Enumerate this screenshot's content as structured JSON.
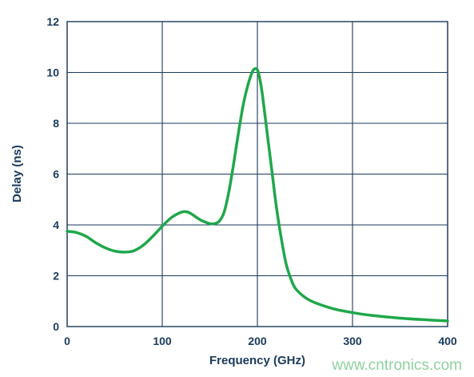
{
  "chart_data": {
    "type": "line",
    "title": "",
    "xlabel": "Frequency (GHz)",
    "ylabel": "Delay (ns)",
    "xlim": [
      0,
      400
    ],
    "ylim": [
      0,
      12
    ],
    "x_ticks": [
      "0",
      "100",
      "200",
      "300",
      "400"
    ],
    "y_ticks": [
      "0",
      "2",
      "4",
      "6",
      "8",
      "10",
      "12"
    ],
    "grid": true,
    "legend": "none",
    "series": [
      {
        "color": "#1fa74a",
        "x": [
          0,
          10,
          20,
          30,
          40,
          50,
          60,
          70,
          80,
          90,
          100,
          110,
          120,
          125,
          130,
          140,
          150,
          155,
          160,
          165,
          170,
          175,
          180,
          185,
          190,
          195,
          198,
          200,
          202,
          205,
          210,
          215,
          220,
          225,
          230,
          235,
          240,
          250,
          260,
          280,
          300,
          320,
          350,
          380,
          400
        ],
        "y": [
          3.75,
          3.7,
          3.55,
          3.3,
          3.1,
          2.97,
          2.93,
          2.98,
          3.2,
          3.55,
          3.95,
          4.3,
          4.5,
          4.52,
          4.45,
          4.2,
          4.05,
          4.05,
          4.15,
          4.5,
          5.3,
          6.4,
          7.6,
          8.7,
          9.5,
          10.05,
          10.15,
          10.1,
          9.85,
          9.2,
          7.7,
          6.2,
          4.7,
          3.5,
          2.5,
          1.9,
          1.5,
          1.15,
          0.95,
          0.7,
          0.55,
          0.44,
          0.33,
          0.26,
          0.22
        ]
      }
    ]
  },
  "colors": {
    "axis_text": "#1a3a5c",
    "grid": "#1a3a5c",
    "line": "#1fa74a",
    "watermark": "#8fd0a0"
  },
  "watermark": "www.cntronics.com"
}
